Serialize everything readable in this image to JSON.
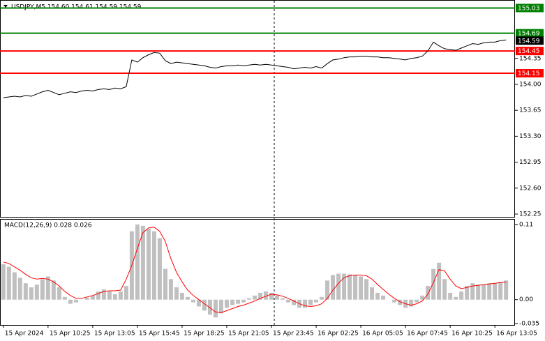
{
  "chart_data": [
    {
      "type": "line",
      "title": "USDJPY,M5  154.60 154.61 154.59 154.59",
      "xlim": [
        -0.6,
        91.6
      ],
      "ylim": [
        152.203,
        155.138
      ],
      "yticks": [
        152.25,
        {
          "value": 152.6,
          "label": "152.60"
        },
        152.95,
        {
          "value": 153.3,
          "label": "153.30"
        },
        153.65,
        {
          "value": 154,
          "label": "154.00"
        },
        154.35
      ],
      "levels": [
        {
          "value": 155.03,
          "color": "#008000"
        },
        {
          "value": 154.69,
          "color": "#008000"
        },
        {
          "value": 154.45,
          "color": "#ff0000"
        },
        {
          "value": 154.15,
          "color": "#ff0000"
        }
      ],
      "last_price": {
        "value": 154.59,
        "color": "#000000"
      },
      "series": [
        {
          "color": "#000000",
          "values": [
            153.82,
            153.83,
            153.84,
            153.83,
            153.85,
            153.84,
            153.87,
            153.9,
            153.92,
            153.89,
            153.86,
            153.88,
            153.9,
            153.89,
            153.91,
            153.92,
            153.91,
            153.93,
            153.94,
            153.93,
            153.95,
            153.94,
            153.97,
            154.33,
            154.3,
            154.36,
            154.4,
            154.43,
            154.42,
            154.32,
            154.28,
            154.3,
            154.29,
            154.28,
            154.27,
            154.26,
            154.25,
            154.23,
            154.22,
            154.24,
            154.25,
            154.25,
            154.26,
            154.25,
            154.26,
            154.27,
            154.26,
            154.27,
            154.26,
            154.25,
            154.24,
            154.23,
            154.21,
            154.22,
            154.23,
            154.22,
            154.24,
            154.22,
            154.28,
            154.33,
            154.34,
            154.36,
            154.37,
            154.37,
            154.38,
            154.38,
            154.37,
            154.37,
            154.36,
            154.36,
            154.35,
            154.34,
            154.33,
            154.35,
            154.36,
            154.38,
            154.45,
            154.57,
            154.52,
            154.48,
            154.47,
            154.46,
            154.49,
            154.52,
            154.55,
            154.54,
            154.56,
            154.57,
            154.57,
            154.59,
            154.6
          ]
        }
      ]
    },
    {
      "type": "macd",
      "title": "MACD(12,26,9) 0.028 0.026",
      "xlim": [
        -0.6,
        91.6
      ],
      "ylim": [
        -0.037,
        0.117
      ],
      "yticks": [
        -0.035,
        {
          "value": 0,
          "label": "0.00"
        },
        0.11
      ],
      "xticks": [
        {
          "value": 0,
          "label": "15 Apr 2024"
        },
        {
          "value": 8,
          "label": "15 Apr 10:25"
        },
        {
          "value": 16,
          "label": "15 Apr 13:05"
        },
        {
          "value": 24,
          "label": "15 Apr 15:45"
        },
        {
          "value": 32,
          "label": "15 Apr 18:25"
        },
        {
          "value": 40,
          "label": "15 Apr 21:05"
        },
        {
          "value": 48,
          "label": "15 Apr 23:45"
        },
        {
          "value": 56,
          "label": "16 Apr 02:25"
        },
        {
          "value": 64,
          "label": "16 Apr 05:05"
        },
        {
          "value": 72,
          "label": "16 Apr 07:45"
        },
        {
          "value": 80,
          "label": "16 Apr 10:25"
        },
        {
          "value": 88,
          "label": "16 Apr 13:05"
        }
      ],
      "series": [
        {
          "type": "bar",
          "color": "#c0c0c0",
          "values": [
            0.052,
            0.048,
            0.04,
            0.032,
            0.024,
            0.018,
            0.022,
            0.03,
            0.034,
            0.028,
            0.018,
            0.004,
            -0.006,
            -0.004,
            0,
            0.003,
            0.006,
            0.012,
            0.015,
            0.012,
            0.008,
            0.012,
            0.02,
            0.1,
            0.11,
            0.108,
            0.104,
            0.1,
            0.09,
            0.045,
            0.03,
            0.018,
            0.01,
            0.004,
            -0.004,
            -0.01,
            -0.016,
            -0.022,
            -0.026,
            -0.02,
            -0.012,
            -0.008,
            -0.006,
            -0.004,
            0.002,
            0.006,
            0.01,
            0.012,
            0.01,
            0.006,
            0.002,
            -0.004,
            -0.008,
            -0.012,
            -0.012,
            -0.008,
            -0.004,
            0.004,
            0.028,
            0.036,
            0.038,
            0.038,
            0.037,
            0.036,
            0.034,
            0.03,
            0.018,
            0.01,
            0.006,
            0,
            -0.004,
            -0.008,
            -0.012,
            -0.01,
            -0.004,
            0.006,
            0.02,
            0.045,
            0.054,
            0.03,
            0.01,
            0.004,
            0.012,
            0.02,
            0.024,
            0.022,
            0.022,
            0.024,
            0.024,
            0.026,
            0.028
          ]
        },
        {
          "type": "line",
          "color": "#ff0000",
          "values": [
            0.055,
            0.053,
            0.048,
            0.043,
            0.037,
            0.032,
            0.03,
            0.031,
            0.03,
            0.026,
            0.02,
            0.012,
            0.006,
            0.002,
            0.002,
            0.004,
            0.006,
            0.009,
            0.012,
            0.013,
            0.013,
            0.014,
            0.03,
            0.05,
            0.075,
            0.098,
            0.105,
            0.106,
            0.1,
            0.085,
            0.06,
            0.04,
            0.026,
            0.014,
            0.006,
            0,
            -0.006,
            -0.012,
            -0.018,
            -0.019,
            -0.016,
            -0.013,
            -0.01,
            -0.008,
            -0.005,
            -0.002,
            0.002,
            0.005,
            0.008,
            0.007,
            0.005,
            0.002,
            -0.002,
            -0.006,
            -0.009,
            -0.01,
            -0.009,
            -0.006,
            0.002,
            0.014,
            0.024,
            0.032,
            0.035,
            0.036,
            0.036,
            0.035,
            0.03,
            0.022,
            0.015,
            0.008,
            0.002,
            -0.003,
            -0.006,
            -0.008,
            -0.006,
            -0.002,
            0.008,
            0.025,
            0.044,
            0.042,
            0.03,
            0.02,
            0.016,
            0.018,
            0.02,
            0.021,
            0.022,
            0.023,
            0.024,
            0.025,
            0.026
          ]
        }
      ]
    }
  ]
}
